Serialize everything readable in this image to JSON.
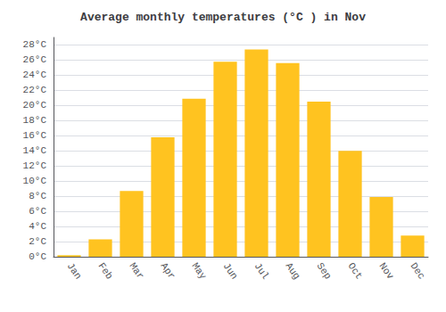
{
  "chart_data": {
    "type": "bar",
    "title": "Average monthly temperatures (°C ) in Nov",
    "categories": [
      "Jan",
      "Feb",
      "Mar",
      "Apr",
      "May",
      "Jun",
      "Jul",
      "Aug",
      "Sep",
      "Oct",
      "Nov",
      "Dec"
    ],
    "values": [
      0.2,
      2.3,
      8.7,
      15.8,
      20.9,
      25.8,
      27.4,
      25.6,
      20.5,
      14.0,
      7.9,
      2.8
    ],
    "color": "#FFC320",
    "ylim": [
      0,
      29
    ],
    "yticks": [
      {
        "value": 0,
        "label": "0°C"
      },
      {
        "value": 2,
        "label": "2°C"
      },
      {
        "value": 4,
        "label": "4°C"
      },
      {
        "value": 6,
        "label": "6°C"
      },
      {
        "value": 8,
        "label": "8°C"
      },
      {
        "value": 10,
        "label": "10°C"
      },
      {
        "value": 12,
        "label": "12°C"
      },
      {
        "value": 14,
        "label": "14°C"
      },
      {
        "value": 16,
        "label": "16°C"
      },
      {
        "value": 18,
        "label": "18°C"
      },
      {
        "value": 20,
        "label": "20°C"
      },
      {
        "value": 22,
        "label": "22°C"
      },
      {
        "value": 24,
        "label": "24°C"
      },
      {
        "value": 26,
        "label": "26°C"
      },
      {
        "value": 28,
        "label": "28°C"
      }
    ],
    "grid": true
  }
}
